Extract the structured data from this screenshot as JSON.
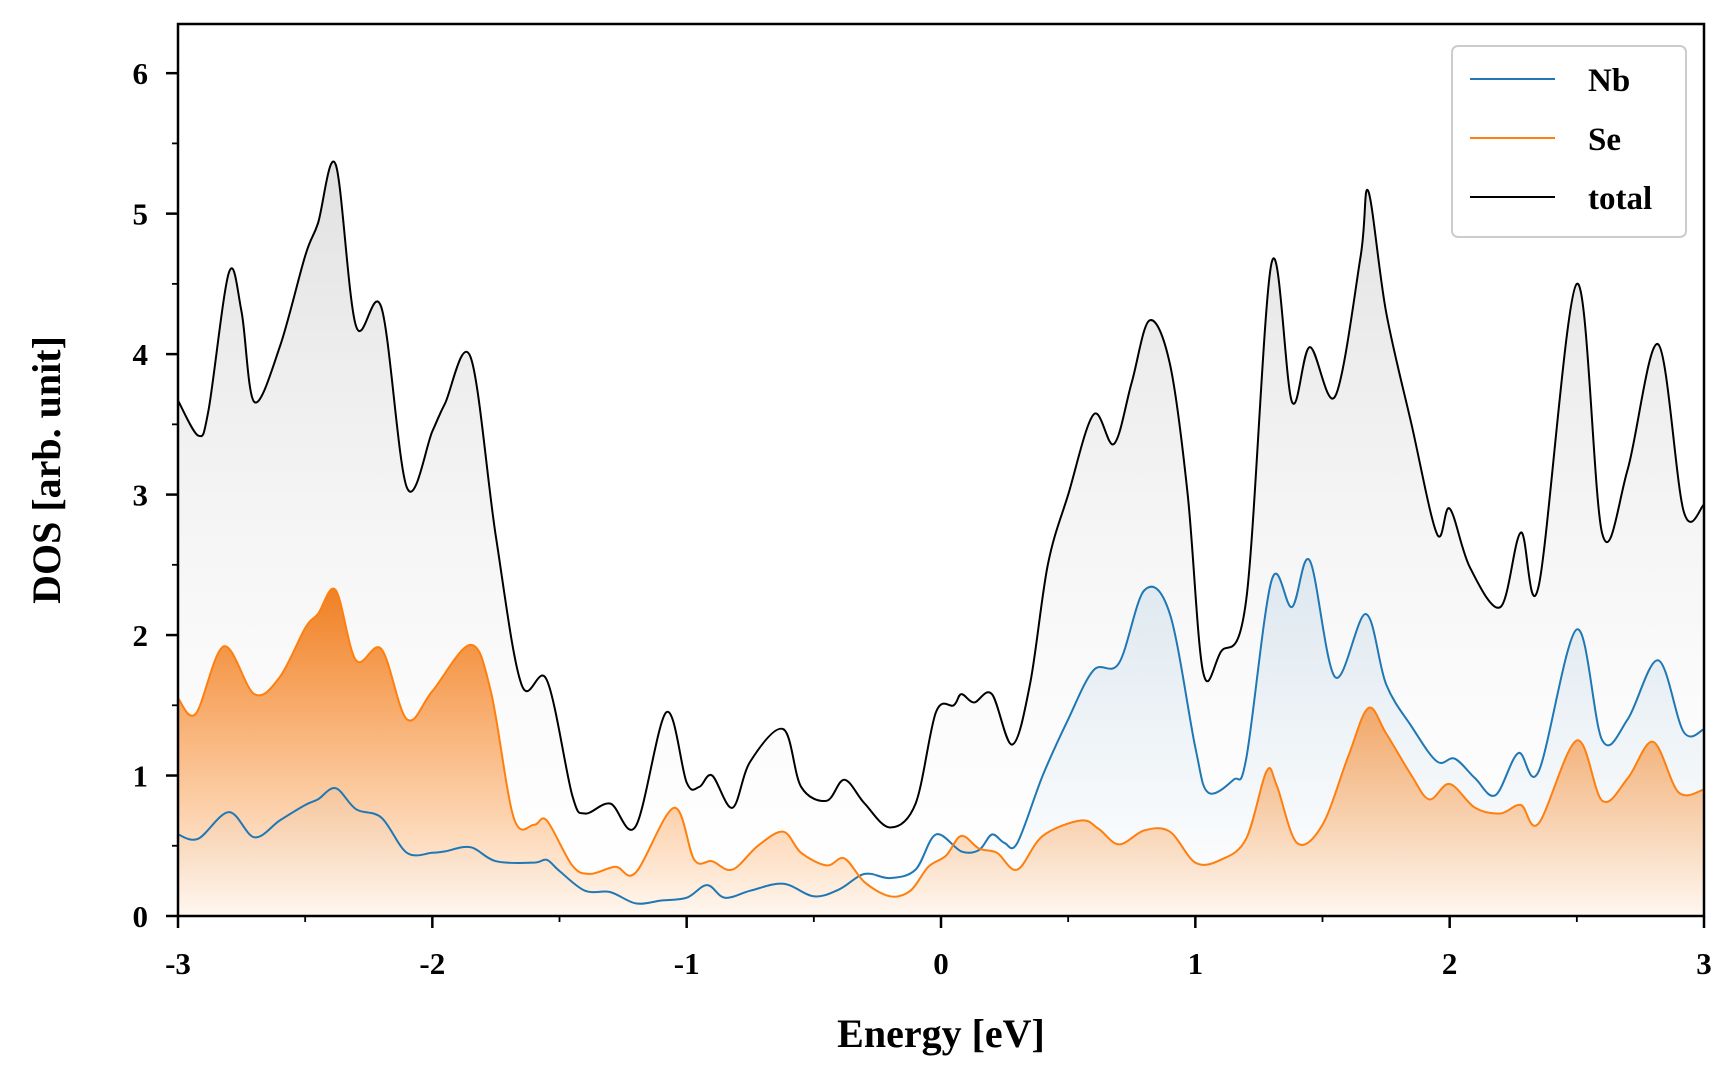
{
  "chart_data": {
    "type": "area",
    "xlabel": "Energy [eV]",
    "ylabel": "DOS [arb. unit]",
    "xlim": [
      -3,
      3
    ],
    "ylim": [
      0,
      6.35
    ],
    "x_ticks": [
      -3,
      -2,
      -1,
      0,
      1,
      2,
      3
    ],
    "x_tick_labels": [
      "-3",
      "-2",
      "-1",
      "0",
      "1",
      "2",
      "3"
    ],
    "y_ticks": [
      0,
      1,
      2,
      3,
      4,
      5,
      6
    ],
    "y_tick_labels": [
      "0",
      "1",
      "2",
      "3",
      "4",
      "5",
      "6"
    ],
    "legend_position": "top-right",
    "grid": false,
    "series": [
      {
        "name": "Nb",
        "color": "#1f77b4",
        "points": [
          [
            -3.0,
            0.58
          ],
          [
            -2.92,
            0.55
          ],
          [
            -2.8,
            0.74
          ],
          [
            -2.7,
            0.56
          ],
          [
            -2.6,
            0.68
          ],
          [
            -2.5,
            0.79
          ],
          [
            -2.45,
            0.83
          ],
          [
            -2.38,
            0.91
          ],
          [
            -2.3,
            0.76
          ],
          [
            -2.2,
            0.7
          ],
          [
            -2.1,
            0.45
          ],
          [
            -2.0,
            0.45
          ],
          [
            -1.95,
            0.46
          ],
          [
            -1.85,
            0.49
          ],
          [
            -1.75,
            0.39
          ],
          [
            -1.6,
            0.38
          ],
          [
            -1.55,
            0.4
          ],
          [
            -1.5,
            0.32
          ],
          [
            -1.4,
            0.18
          ],
          [
            -1.3,
            0.17
          ],
          [
            -1.2,
            0.09
          ],
          [
            -1.1,
            0.11
          ],
          [
            -1.0,
            0.13
          ],
          [
            -0.92,
            0.22
          ],
          [
            -0.85,
            0.13
          ],
          [
            -0.75,
            0.18
          ],
          [
            -0.62,
            0.23
          ],
          [
            -0.5,
            0.14
          ],
          [
            -0.4,
            0.19
          ],
          [
            -0.3,
            0.3
          ],
          [
            -0.2,
            0.27
          ],
          [
            -0.1,
            0.33
          ],
          [
            -0.02,
            0.58
          ],
          [
            0.08,
            0.46
          ],
          [
            0.15,
            0.47
          ],
          [
            0.2,
            0.58
          ],
          [
            0.25,
            0.52
          ],
          [
            0.3,
            0.52
          ],
          [
            0.4,
            1.0
          ],
          [
            0.5,
            1.4
          ],
          [
            0.6,
            1.75
          ],
          [
            0.7,
            1.8
          ],
          [
            0.8,
            2.32
          ],
          [
            0.9,
            2.15
          ],
          [
            1.0,
            1.2
          ],
          [
            1.05,
            0.88
          ],
          [
            1.15,
            0.97
          ],
          [
            1.2,
            1.12
          ],
          [
            1.3,
            2.39
          ],
          [
            1.38,
            2.2
          ],
          [
            1.45,
            2.53
          ],
          [
            1.55,
            1.7
          ],
          [
            1.67,
            2.15
          ],
          [
            1.75,
            1.65
          ],
          [
            1.85,
            1.35
          ],
          [
            1.95,
            1.1
          ],
          [
            2.02,
            1.12
          ],
          [
            2.1,
            0.98
          ],
          [
            2.18,
            0.86
          ],
          [
            2.27,
            1.16
          ],
          [
            2.35,
            1.03
          ],
          [
            2.5,
            2.04
          ],
          [
            2.6,
            1.25
          ],
          [
            2.7,
            1.4
          ],
          [
            2.82,
            1.82
          ],
          [
            2.92,
            1.31
          ],
          [
            3.0,
            1.33
          ]
        ]
      },
      {
        "name": "Se",
        "color": "#ff7f0e",
        "points": [
          [
            -3.0,
            1.55
          ],
          [
            -2.93,
            1.44
          ],
          [
            -2.82,
            1.92
          ],
          [
            -2.7,
            1.58
          ],
          [
            -2.6,
            1.7
          ],
          [
            -2.5,
            2.05
          ],
          [
            -2.45,
            2.15
          ],
          [
            -2.38,
            2.32
          ],
          [
            -2.3,
            1.82
          ],
          [
            -2.2,
            1.9
          ],
          [
            -2.1,
            1.4
          ],
          [
            -2.0,
            1.6
          ],
          [
            -1.85,
            1.93
          ],
          [
            -1.77,
            1.6
          ],
          [
            -1.68,
            0.7
          ],
          [
            -1.6,
            0.65
          ],
          [
            -1.55,
            0.68
          ],
          [
            -1.45,
            0.36
          ],
          [
            -1.38,
            0.3
          ],
          [
            -1.28,
            0.35
          ],
          [
            -1.2,
            0.31
          ],
          [
            -1.05,
            0.77
          ],
          [
            -0.97,
            0.4
          ],
          [
            -0.9,
            0.39
          ],
          [
            -0.82,
            0.33
          ],
          [
            -0.72,
            0.5
          ],
          [
            -0.62,
            0.6
          ],
          [
            -0.55,
            0.45
          ],
          [
            -0.45,
            0.36
          ],
          [
            -0.38,
            0.41
          ],
          [
            -0.3,
            0.24
          ],
          [
            -0.2,
            0.14
          ],
          [
            -0.12,
            0.18
          ],
          [
            -0.05,
            0.35
          ],
          [
            0.02,
            0.43
          ],
          [
            0.08,
            0.57
          ],
          [
            0.15,
            0.48
          ],
          [
            0.22,
            0.45
          ],
          [
            0.3,
            0.33
          ],
          [
            0.4,
            0.57
          ],
          [
            0.55,
            0.68
          ],
          [
            0.62,
            0.62
          ],
          [
            0.7,
            0.51
          ],
          [
            0.8,
            0.61
          ],
          [
            0.9,
            0.6
          ],
          [
            1.0,
            0.38
          ],
          [
            1.1,
            0.4
          ],
          [
            1.2,
            0.55
          ],
          [
            1.28,
            1.03
          ],
          [
            1.32,
            0.93
          ],
          [
            1.4,
            0.52
          ],
          [
            1.5,
            0.65
          ],
          [
            1.6,
            1.13
          ],
          [
            1.68,
            1.48
          ],
          [
            1.75,
            1.3
          ],
          [
            1.85,
            1.0
          ],
          [
            1.92,
            0.83
          ],
          [
            2.0,
            0.94
          ],
          [
            2.1,
            0.77
          ],
          [
            2.2,
            0.73
          ],
          [
            2.28,
            0.79
          ],
          [
            2.35,
            0.66
          ],
          [
            2.5,
            1.25
          ],
          [
            2.6,
            0.82
          ],
          [
            2.7,
            0.98
          ],
          [
            2.8,
            1.24
          ],
          [
            2.9,
            0.88
          ],
          [
            3.0,
            0.9
          ]
        ]
      },
      {
        "name": "total",
        "color": "#000000",
        "points": [
          [
            -3.0,
            3.67
          ],
          [
            -2.92,
            3.42
          ],
          [
            -2.88,
            3.6
          ],
          [
            -2.8,
            4.58
          ],
          [
            -2.75,
            4.3
          ],
          [
            -2.7,
            3.66
          ],
          [
            -2.6,
            4.05
          ],
          [
            -2.5,
            4.7
          ],
          [
            -2.45,
            4.93
          ],
          [
            -2.38,
            5.35
          ],
          [
            -2.3,
            4.2
          ],
          [
            -2.2,
            4.33
          ],
          [
            -2.1,
            3.05
          ],
          [
            -2.0,
            3.45
          ],
          [
            -1.95,
            3.65
          ],
          [
            -1.85,
            3.98
          ],
          [
            -1.75,
            2.7
          ],
          [
            -1.65,
            1.65
          ],
          [
            -1.55,
            1.68
          ],
          [
            -1.45,
            0.86
          ],
          [
            -1.4,
            0.73
          ],
          [
            -1.3,
            0.8
          ],
          [
            -1.2,
            0.64
          ],
          [
            -1.08,
            1.45
          ],
          [
            -1.0,
            0.95
          ],
          [
            -0.95,
            0.92
          ],
          [
            -0.9,
            1.0
          ],
          [
            -0.82,
            0.77
          ],
          [
            -0.75,
            1.1
          ],
          [
            -0.62,
            1.33
          ],
          [
            -0.55,
            0.92
          ],
          [
            -0.45,
            0.82
          ],
          [
            -0.38,
            0.97
          ],
          [
            -0.3,
            0.8
          ],
          [
            -0.2,
            0.63
          ],
          [
            -0.1,
            0.8
          ],
          [
            -0.02,
            1.45
          ],
          [
            0.05,
            1.5
          ],
          [
            0.08,
            1.58
          ],
          [
            0.13,
            1.52
          ],
          [
            0.2,
            1.58
          ],
          [
            0.28,
            1.22
          ],
          [
            0.35,
            1.65
          ],
          [
            0.42,
            2.5
          ],
          [
            0.5,
            3.0
          ],
          [
            0.6,
            3.57
          ],
          [
            0.68,
            3.36
          ],
          [
            0.75,
            3.8
          ],
          [
            0.82,
            4.24
          ],
          [
            0.9,
            3.93
          ],
          [
            0.97,
            3.0
          ],
          [
            1.03,
            1.74
          ],
          [
            1.1,
            1.88
          ],
          [
            1.2,
            2.25
          ],
          [
            1.3,
            4.65
          ],
          [
            1.38,
            3.66
          ],
          [
            1.45,
            4.05
          ],
          [
            1.55,
            3.7
          ],
          [
            1.65,
            4.7
          ],
          [
            1.68,
            5.16
          ],
          [
            1.75,
            4.3
          ],
          [
            1.85,
            3.5
          ],
          [
            1.95,
            2.72
          ],
          [
            2.0,
            2.9
          ],
          [
            2.08,
            2.48
          ],
          [
            2.2,
            2.2
          ],
          [
            2.28,
            2.73
          ],
          [
            2.35,
            2.35
          ],
          [
            2.5,
            4.5
          ],
          [
            2.6,
            2.72
          ],
          [
            2.7,
            3.18
          ],
          [
            2.82,
            4.07
          ],
          [
            2.92,
            2.88
          ],
          [
            3.0,
            2.93
          ]
        ]
      }
    ]
  }
}
